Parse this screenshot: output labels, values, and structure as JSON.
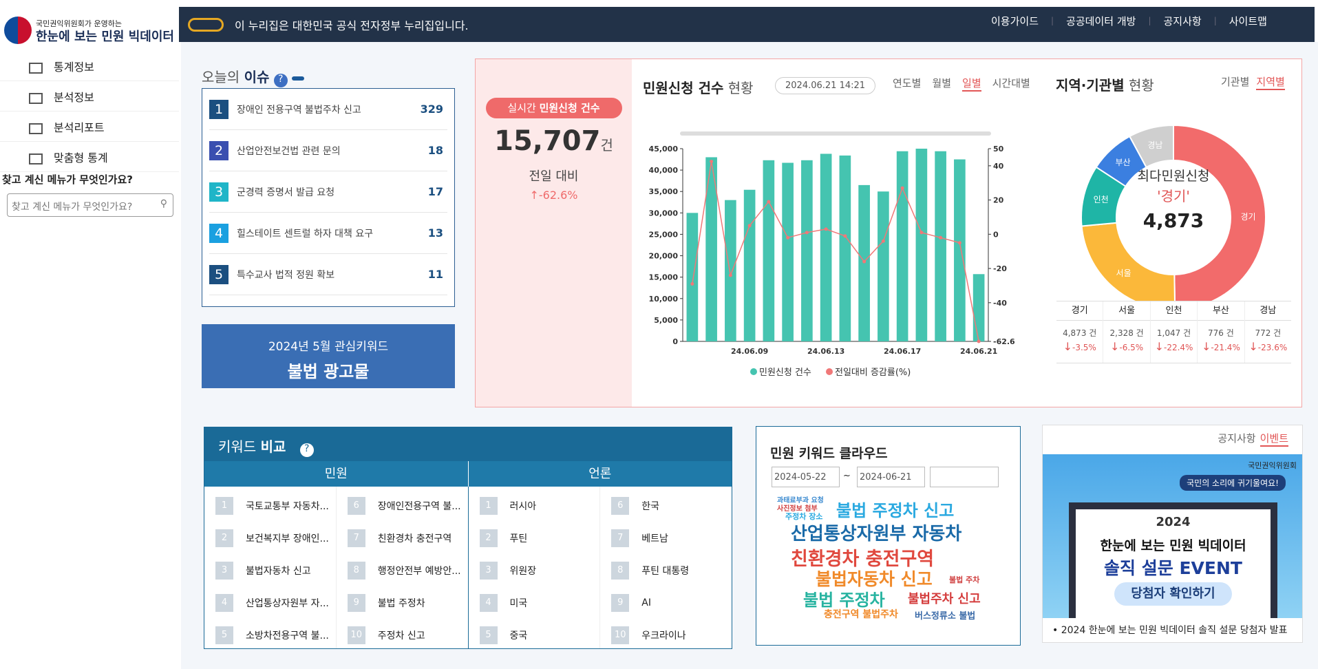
{
  "header": {
    "org": "국민권익위원회가 운영하는",
    "site": "한눈에 보는 민원 빅데이터",
    "gov_notice": "이 누리집은 대한민국 공식 전자정부 누리집입니다.",
    "nav": [
      "이용가이드",
      "공공데이터 개방",
      "공지사항",
      "사이트맵"
    ]
  },
  "sidebar": {
    "menu": [
      "통계정보",
      "분석정보",
      "분석리포트",
      "맞춤형 통계"
    ],
    "search_label": "찾고 계신 메뉴가 무엇인가요?",
    "search_placeholder": "찾고 계신 메뉴가 무엇인가요?"
  },
  "issues": {
    "title_a": "오늘의",
    "title_b": "이슈",
    "items": [
      {
        "rank": 1,
        "text": "장애인 전용구역 불법주차 신고",
        "count": 329
      },
      {
        "rank": 2,
        "text": "산업안전보건법 관련 문의",
        "count": 18
      },
      {
        "rank": 3,
        "text": "군경력 증명서 발급 요청",
        "count": 17
      },
      {
        "rank": 4,
        "text": "힐스테이트 센트럴 하자 대책 요구",
        "count": 13
      },
      {
        "rank": 5,
        "text": "특수교사 법적 정원 확보",
        "count": 11
      }
    ]
  },
  "keyword_banner": {
    "subtitle": "2024년 5월 관심키워드",
    "keyword": "불법 광고물"
  },
  "realtime": {
    "label_a": "실시간",
    "label_b": "민원신청 건수",
    "value": "15,707",
    "unit": "건",
    "compare": "전일 대비",
    "change": "-62.6%"
  },
  "daily": {
    "title_a": "민원신청 건수",
    "title_b": "현황",
    "datetime": "2024.06.21 14:21",
    "tabs": [
      "연도별",
      "월별",
      "일별",
      "시간대별"
    ],
    "active_tab": 2
  },
  "region": {
    "title_a": "지역·기관별",
    "title_b": "현황",
    "tabs": [
      "기관별",
      "지역별"
    ],
    "active_tab": 1,
    "center_title": "최다민원신청",
    "center_name": "'경기'",
    "center_value": "4,873"
  },
  "chart_data": [
    {
      "type": "bar",
      "categories": [
        null,
        null,
        null,
        "24.06.09",
        null,
        null,
        null,
        "24.06.13",
        null,
        null,
        null,
        "24.06.17",
        null,
        null,
        null,
        "24.06.21"
      ],
      "series": [
        {
          "name": "민원신청 건수",
          "color": "#45c4b0",
          "values": [
            30000,
            43000,
            33000,
            35400,
            42300,
            41700,
            42300,
            43800,
            43400,
            36500,
            35000,
            44400,
            45000,
            44400,
            42500,
            15707
          ]
        },
        {
          "name": "전일대비 증감률(%)",
          "color": "#f07878",
          "axis": "y2",
          "values": [
            -29,
            42.5,
            -24,
            5,
            19,
            -2,
            1,
            3,
            -1,
            -16,
            -4,
            27,
            1,
            -2,
            -5,
            -62.6
          ]
        }
      ],
      "ylim": [
        0,
        45000
      ],
      "yticks": [
        0,
        {
          "value": 5000,
          "label": "5,000"
        },
        {
          "value": 10000,
          "label": "10,000"
        },
        {
          "value": 15000,
          "label": "15,000"
        },
        {
          "value": 20000,
          "label": "20,000"
        },
        {
          "value": 25000,
          "label": "25,000"
        },
        {
          "value": 30000,
          "label": "30,000"
        },
        {
          "value": 35000,
          "label": "35,000"
        },
        {
          "value": 40000,
          "label": "40,000"
        },
        {
          "value": 45000,
          "label": "45,000"
        }
      ],
      "y2lim": [
        -62.6,
        50
      ],
      "y2ticks": [
        50,
        40,
        20,
        0,
        -20,
        -40,
        -62.6
      ]
    },
    {
      "type": "pie",
      "categories": [
        "경기",
        "서울",
        "인천",
        "부산",
        "경남"
      ],
      "values": [
        4873,
        2328,
        1047,
        776,
        772
      ],
      "value_labels": [
        "4,873 건",
        "2,328 건",
        "1,047 건",
        "776 건",
        "772 건"
      ],
      "changes": [
        "-3.5%",
        "-6.5%",
        "-22.4%",
        "-21.4%",
        "-23.6%"
      ],
      "colors": [
        "#f26b6b",
        "#fbb83a",
        "#1fb5a6",
        "#3b7fe0",
        "#cfcfcf"
      ]
    }
  ],
  "keyword_compare": {
    "title_a": "키워드",
    "title_b": "비교",
    "col_a": "민원",
    "col_b": "언론",
    "minwon": [
      {
        "rank": 1,
        "text": "국토교통부 자동차..."
      },
      {
        "rank": 2,
        "text": "보건복지부 장애인..."
      },
      {
        "rank": 3,
        "text": "불법자동차 신고"
      },
      {
        "rank": 4,
        "text": "산업통상자원부 자..."
      },
      {
        "rank": 5,
        "text": "소방차전용구역 불..."
      },
      {
        "rank": 6,
        "text": "장애인전용구역 불..."
      },
      {
        "rank": 7,
        "text": "친환경차 충전구역"
      },
      {
        "rank": 8,
        "text": "행정안전부 예방안..."
      },
      {
        "rank": 9,
        "text": "불법 주정차"
      },
      {
        "rank": 10,
        "text": "주정차 신고"
      }
    ],
    "press": [
      {
        "rank": 1,
        "text": "러시아"
      },
      {
        "rank": 2,
        "text": "푸틴"
      },
      {
        "rank": 3,
        "text": "위원장"
      },
      {
        "rank": 4,
        "text": "미국"
      },
      {
        "rank": 5,
        "text": "중국"
      },
      {
        "rank": 6,
        "text": "한국"
      },
      {
        "rank": 7,
        "text": "베트남"
      },
      {
        "rank": 8,
        "text": "푸틴 대통령"
      },
      {
        "rank": 9,
        "text": "AI"
      },
      {
        "rank": 10,
        "text": "우크라이나"
      }
    ]
  },
  "word_cloud": {
    "title": "민원 키워드 클라우드",
    "date_from": "2024-05-22",
    "date_to": "2024-06-21",
    "words": [
      "불법 주정차 신고",
      "산업통상자원부 자동차",
      "친환경차 충전구역",
      "불법자동차 신고",
      "불법 주정차",
      "불법주차 신고",
      "충전구역 불법주차",
      "버스정류소 불법",
      "과태료부과 요청",
      "사진정보 첨부",
      "주정차 장소",
      "불법 주차"
    ]
  },
  "notice": {
    "tabs": [
      "공지사항",
      "이벤트"
    ],
    "active_tab": 1,
    "banner_org": "국민권익위원회",
    "banner_slogan": "국민의 소리에 귀기울여요!",
    "banner_year": "2024",
    "banner_title": "한눈에 보는 민원 빅데이터",
    "banner_event": "솔직 설문 EVENT",
    "banner_button": "당첨자 확인하기",
    "item": "2024 한눈에 보는 민원 빅데이터 솔직 설문 당첨자 발표"
  }
}
